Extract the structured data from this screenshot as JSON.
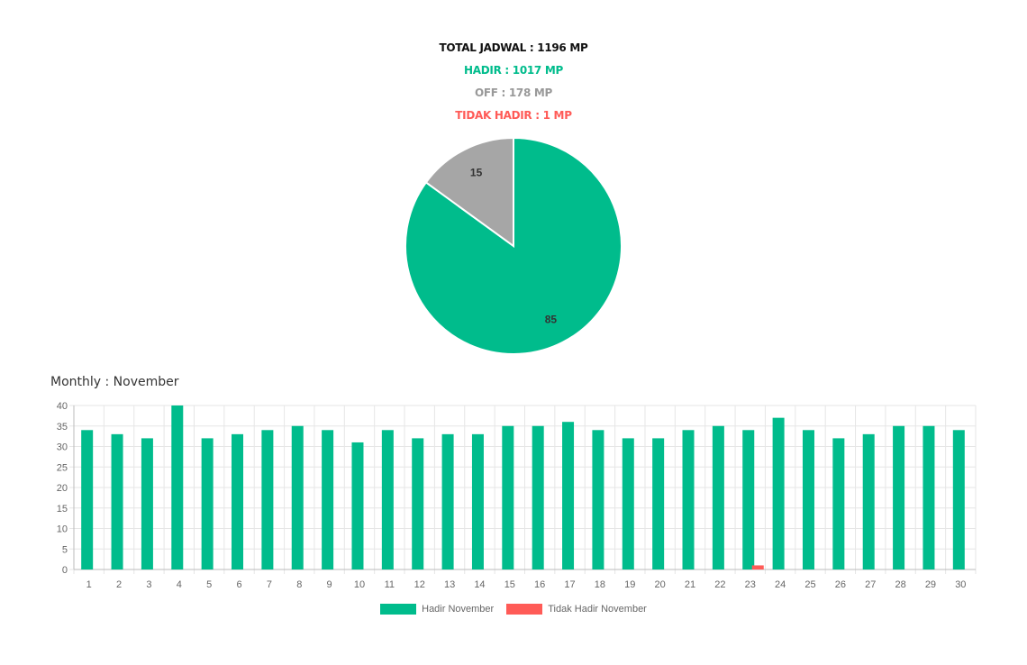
{
  "summary": {
    "total": "TOTAL JADWAL : 1196 MP",
    "hadir": "HADIR : 1017 MP",
    "off": "OFF : 178 MP",
    "tidak_hadir": "TIDAK HADIR : 1 MP"
  },
  "colors": {
    "total": "#111111",
    "hadir": "#00bc8c",
    "off": "#999999",
    "tidak_hadir": "#ff5b57",
    "grid": "#e6e6e6",
    "axis_text": "#666666"
  },
  "monthly_title": "Monthly : November",
  "chart_data": [
    {
      "type": "pie",
      "slices": [
        {
          "label": "",
          "value": 85,
          "color": "#00bc8c"
        },
        {
          "label": "",
          "value": 15,
          "color": "#a6a6a6"
        }
      ],
      "data_labels": [
        "85",
        "15"
      ]
    },
    {
      "type": "bar",
      "title": "Monthly : November",
      "categories": [
        "1",
        "2",
        "3",
        "4",
        "5",
        "6",
        "7",
        "8",
        "9",
        "10",
        "11",
        "12",
        "13",
        "14",
        "15",
        "16",
        "17",
        "18",
        "19",
        "20",
        "21",
        "22",
        "23",
        "24",
        "25",
        "26",
        "27",
        "28",
        "29",
        "30"
      ],
      "series": [
        {
          "name": "Hadir November",
          "color": "#00bc8c",
          "values": [
            34,
            33,
            32,
            40,
            32,
            33,
            34,
            35,
            34,
            31,
            34,
            32,
            33,
            33,
            35,
            35,
            36,
            34,
            32,
            32,
            34,
            35,
            34,
            37,
            34,
            32,
            33,
            35,
            35,
            34
          ]
        },
        {
          "name": "Tidak Hadir November",
          "color": "#ff5b57",
          "values": [
            0,
            0,
            0,
            0,
            0,
            0,
            0,
            0,
            0,
            0,
            0,
            0,
            0,
            0,
            0,
            0,
            0,
            0,
            0,
            0,
            0,
            0,
            1,
            0,
            0,
            0,
            0,
            0,
            0,
            0
          ]
        }
      ],
      "ylim": [
        0,
        40
      ],
      "yticks": [
        "0",
        "5",
        "10",
        "15",
        "20",
        "25",
        "30",
        "35",
        "40"
      ],
      "grid": true,
      "legend": "bottom"
    }
  ]
}
